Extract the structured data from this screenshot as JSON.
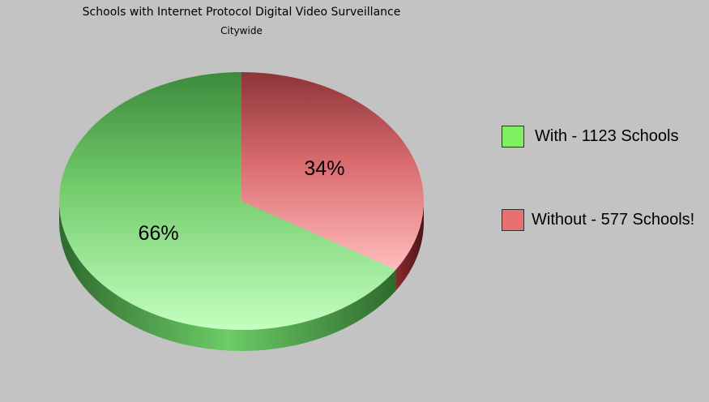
{
  "chart_data": {
    "type": "pie",
    "title": "Schools with Internet Protocol Digital Video Surveillance",
    "subtitle": "Citywide",
    "slices": [
      {
        "name": "With - 1123 Schools",
        "value": 1123,
        "label": "66%"
      },
      {
        "name": "Without - 577 Schools!",
        "value": 577,
        "label": "34%"
      }
    ],
    "legend_position": "right",
    "colors": {
      "with": "#80f060",
      "without": "#e87070"
    }
  }
}
